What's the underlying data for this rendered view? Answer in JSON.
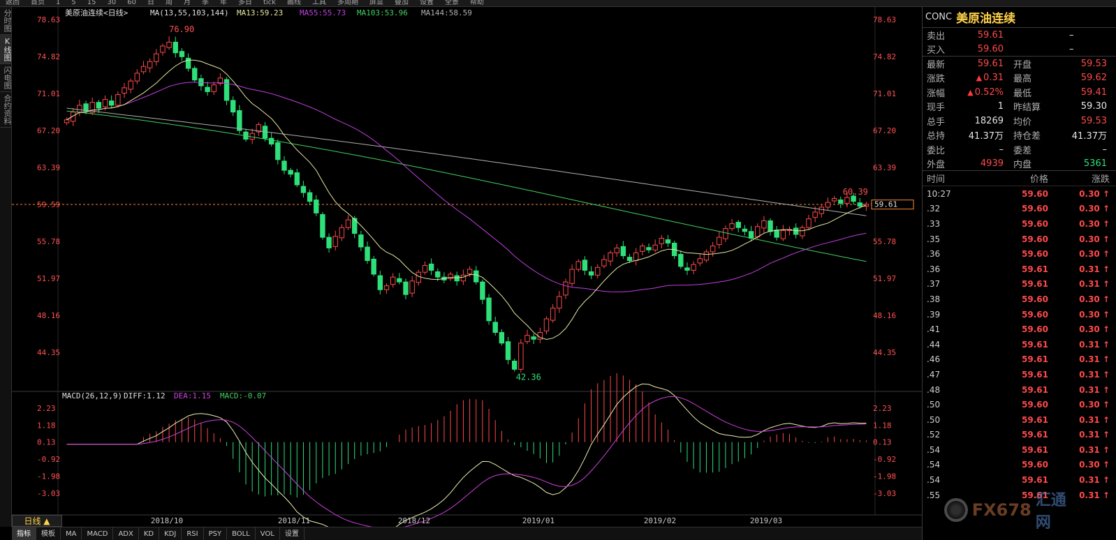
{
  "topbar": {
    "items": [
      "返回",
      "首页",
      "1",
      "5",
      "15",
      "30",
      "60",
      "日",
      "周",
      "月",
      "季",
      "年",
      "多日",
      "tick",
      "画线",
      "工具",
      "多周期",
      "屏显",
      "叠加",
      "设置",
      "全景",
      "帮助"
    ]
  },
  "left_tabs": [
    {
      "label": "分时图"
    },
    {
      "label": "K线图"
    },
    {
      "label": "闪电图"
    },
    {
      "label": "合约资料"
    }
  ],
  "chart_header": {
    "name": "美原油连续<日线>",
    "ma_label": "MA(13,55,103,144)",
    "ma13": "MA13:59.23",
    "ma55": "MA55:55.73",
    "ma103": "MA103:53.96",
    "ma144": "MA144:58.59"
  },
  "macd_header": {
    "name": "MACD(26,12,9)",
    "diff": "DIFF:1.12",
    "dea": "DEA:1.15",
    "macd": "MACD:-0.07"
  },
  "price_axis": {
    "ticks": [
      "78.63",
      "74.82",
      "71.01",
      "67.20",
      "63.39",
      "59.59",
      "55.78",
      "51.97",
      "48.16",
      "44.35"
    ]
  },
  "macd_axis": {
    "ticks": [
      "2.23",
      "1.18",
      "0.13",
      "-0.92",
      "-1.98",
      "-3.03"
    ]
  },
  "last_price_box": "59.61",
  "annotations": {
    "high": "76.90",
    "low": "42.36",
    "recent_high": "60.39"
  },
  "x_axis": {
    "labels": [
      "2018/10",
      "2018/11",
      "2018/12",
      "2019/01",
      "2019/02",
      "2019/03"
    ]
  },
  "day_button": "日线 ▲",
  "bottom_tabs": [
    "指标",
    "模板",
    "MA",
    "MACD",
    "ADX",
    "KD",
    "KDJ",
    "RSI",
    "PSY",
    "BOLL",
    "VOL",
    "设置"
  ],
  "quote": {
    "code": "CONC",
    "name": "美原油连续",
    "sell_label": "卖出",
    "sell_price": "59.61",
    "sell_vol": "–",
    "buy_label": "买入",
    "buy_price": "59.60",
    "buy_vol": "–",
    "rows": [
      {
        "l1": "最新",
        "v1": "59.61",
        "c1": "red",
        "l2": "开盘",
        "v2": "59.53",
        "c2": "red"
      },
      {
        "l1": "涨跌",
        "v1": "0.31",
        "c1": "red",
        "arrow1": true,
        "l2": "最高",
        "v2": "59.62",
        "c2": "red"
      },
      {
        "l1": "涨幅",
        "v1": "0.52%",
        "c1": "red",
        "arrow1": true,
        "l2": "最低",
        "v2": "59.41",
        "c2": "red"
      },
      {
        "l1": "现手",
        "v1": "1",
        "c1": "white",
        "l2": "昨结算",
        "v2": "59.30",
        "c2": "white"
      },
      {
        "l1": "总手",
        "v1": "18269",
        "c1": "white",
        "l2": "均价",
        "v2": "59.53",
        "c2": "red"
      },
      {
        "l1": "总持",
        "v1": "41.37万",
        "c1": "white",
        "l2": "持仓差",
        "v2": "41.37万",
        "c2": "white"
      },
      {
        "l1": "委比",
        "v1": "–",
        "c1": "white",
        "l2": "委差",
        "v2": "–",
        "c2": "white"
      },
      {
        "l1": "外盘",
        "v1": "4939",
        "c1": "red",
        "l2": "内盘",
        "v2": "5361",
        "c2": "green"
      }
    ]
  },
  "ticks_table": {
    "headers": [
      "时间",
      "价格",
      "涨跌"
    ],
    "rows": [
      {
        "t": "10:27",
        "p": "59.60",
        "c": "0.30"
      },
      {
        "t": ".32",
        "p": "59.60",
        "c": "0.30"
      },
      {
        "t": ".33",
        "p": "59.60",
        "c": "0.30"
      },
      {
        "t": ".35",
        "p": "59.60",
        "c": "0.30"
      },
      {
        "t": ".36",
        "p": "59.60",
        "c": "0.30"
      },
      {
        "t": ".36",
        "p": "59.61",
        "c": "0.31"
      },
      {
        "t": ".37",
        "p": "59.61",
        "c": "0.31"
      },
      {
        "t": ".38",
        "p": "59.60",
        "c": "0.30"
      },
      {
        "t": ".39",
        "p": "59.60",
        "c": "0.30"
      },
      {
        "t": ".41",
        "p": "59.60",
        "c": "0.30"
      },
      {
        "t": ".44",
        "p": "59.61",
        "c": "0.31"
      },
      {
        "t": ".46",
        "p": "59.61",
        "c": "0.31"
      },
      {
        "t": ".47",
        "p": "59.61",
        "c": "0.31"
      },
      {
        "t": ".48",
        "p": "59.61",
        "c": "0.31"
      },
      {
        "t": ".50",
        "p": "59.60",
        "c": "0.30"
      },
      {
        "t": ".50",
        "p": "59.61",
        "c": "0.31"
      },
      {
        "t": ".52",
        "p": "59.61",
        "c": "0.31"
      },
      {
        "t": ".54",
        "p": "59.61",
        "c": "0.31"
      },
      {
        "t": ".54",
        "p": "59.60",
        "c": "0.30"
      },
      {
        "t": ".54",
        "p": "59.61",
        "c": "0.31"
      },
      {
        "t": ".55",
        "p": "59.61",
        "c": "0.31"
      }
    ]
  },
  "watermark": {
    "text": "FX678",
    "cn": "汇通网"
  },
  "colors": {
    "up": "#ff4a4a",
    "down": "#2ee07a",
    "ma13": "#e8e8a0",
    "ma55": "#c040e0",
    "ma103": "#40d060",
    "ma144": "#b0b0b0",
    "diff": "#f0f0b0",
    "dea": "#d040e0"
  },
  "chart_data": {
    "type": "candlestick",
    "price_range": [
      42.36,
      78.63
    ],
    "x_labels": [
      "2018/10",
      "2018/11",
      "2018/12",
      "2019/01",
      "2019/02",
      "2019/03"
    ],
    "marked_high": 76.9,
    "marked_low": 42.36,
    "last": 59.61,
    "ma_last": {
      "MA13": 59.23,
      "MA55": 55.73,
      "MA103": 53.96,
      "MA144": 58.59
    },
    "macd_last": {
      "DIFF": 1.12,
      "DEA": 1.15,
      "MACD": -0.07
    },
    "closes_approx": [
      68.3,
      69.1,
      69.8,
      69.2,
      70.1,
      69.5,
      70.4,
      69.8,
      70.9,
      71.6,
      72.3,
      73.1,
      73.8,
      74.3,
      75.1,
      75.9,
      76.3,
      75.2,
      74.8,
      73.6,
      72.4,
      71.8,
      71.2,
      71.9,
      72.6,
      70.3,
      69.1,
      67.2,
      66.3,
      66.9,
      67.8,
      66.4,
      65.8,
      64.2,
      63.1,
      62.7,
      61.6,
      60.8,
      59.9,
      58.7,
      56.2,
      55.1,
      56.3,
      57.2,
      58.0,
      56.6,
      55.2,
      53.8,
      52.4,
      50.8,
      51.2,
      52.1,
      51.6,
      50.3,
      51.7,
      52.6,
      53.3,
      52.8,
      52.1,
      51.8,
      52.4,
      51.7,
      52.3,
      52.9,
      51.6,
      49.8,
      47.6,
      46.4,
      45.3,
      43.6,
      42.6,
      45.3,
      46.1,
      45.7,
      46.4,
      47.8,
      48.9,
      50.1,
      51.6,
      52.9,
      53.7,
      52.8,
      52.3,
      53.1,
      53.9,
      54.6,
      55.1,
      54.3,
      53.8,
      54.6,
      55.3,
      54.9,
      55.4,
      56.1,
      55.6,
      54.3,
      53.2,
      52.8,
      53.4,
      54.0,
      54.7,
      55.3,
      56.2,
      57.1,
      57.6,
      57.2,
      56.8,
      56.1,
      57.3,
      57.9,
      56.8,
      56.2,
      56.9,
      57.0,
      56.5,
      57.2,
      58.1,
      58.8,
      59.3,
      59.8,
      60.2,
      59.7,
      60.3,
      59.9,
      59.4,
      59.61
    ]
  }
}
